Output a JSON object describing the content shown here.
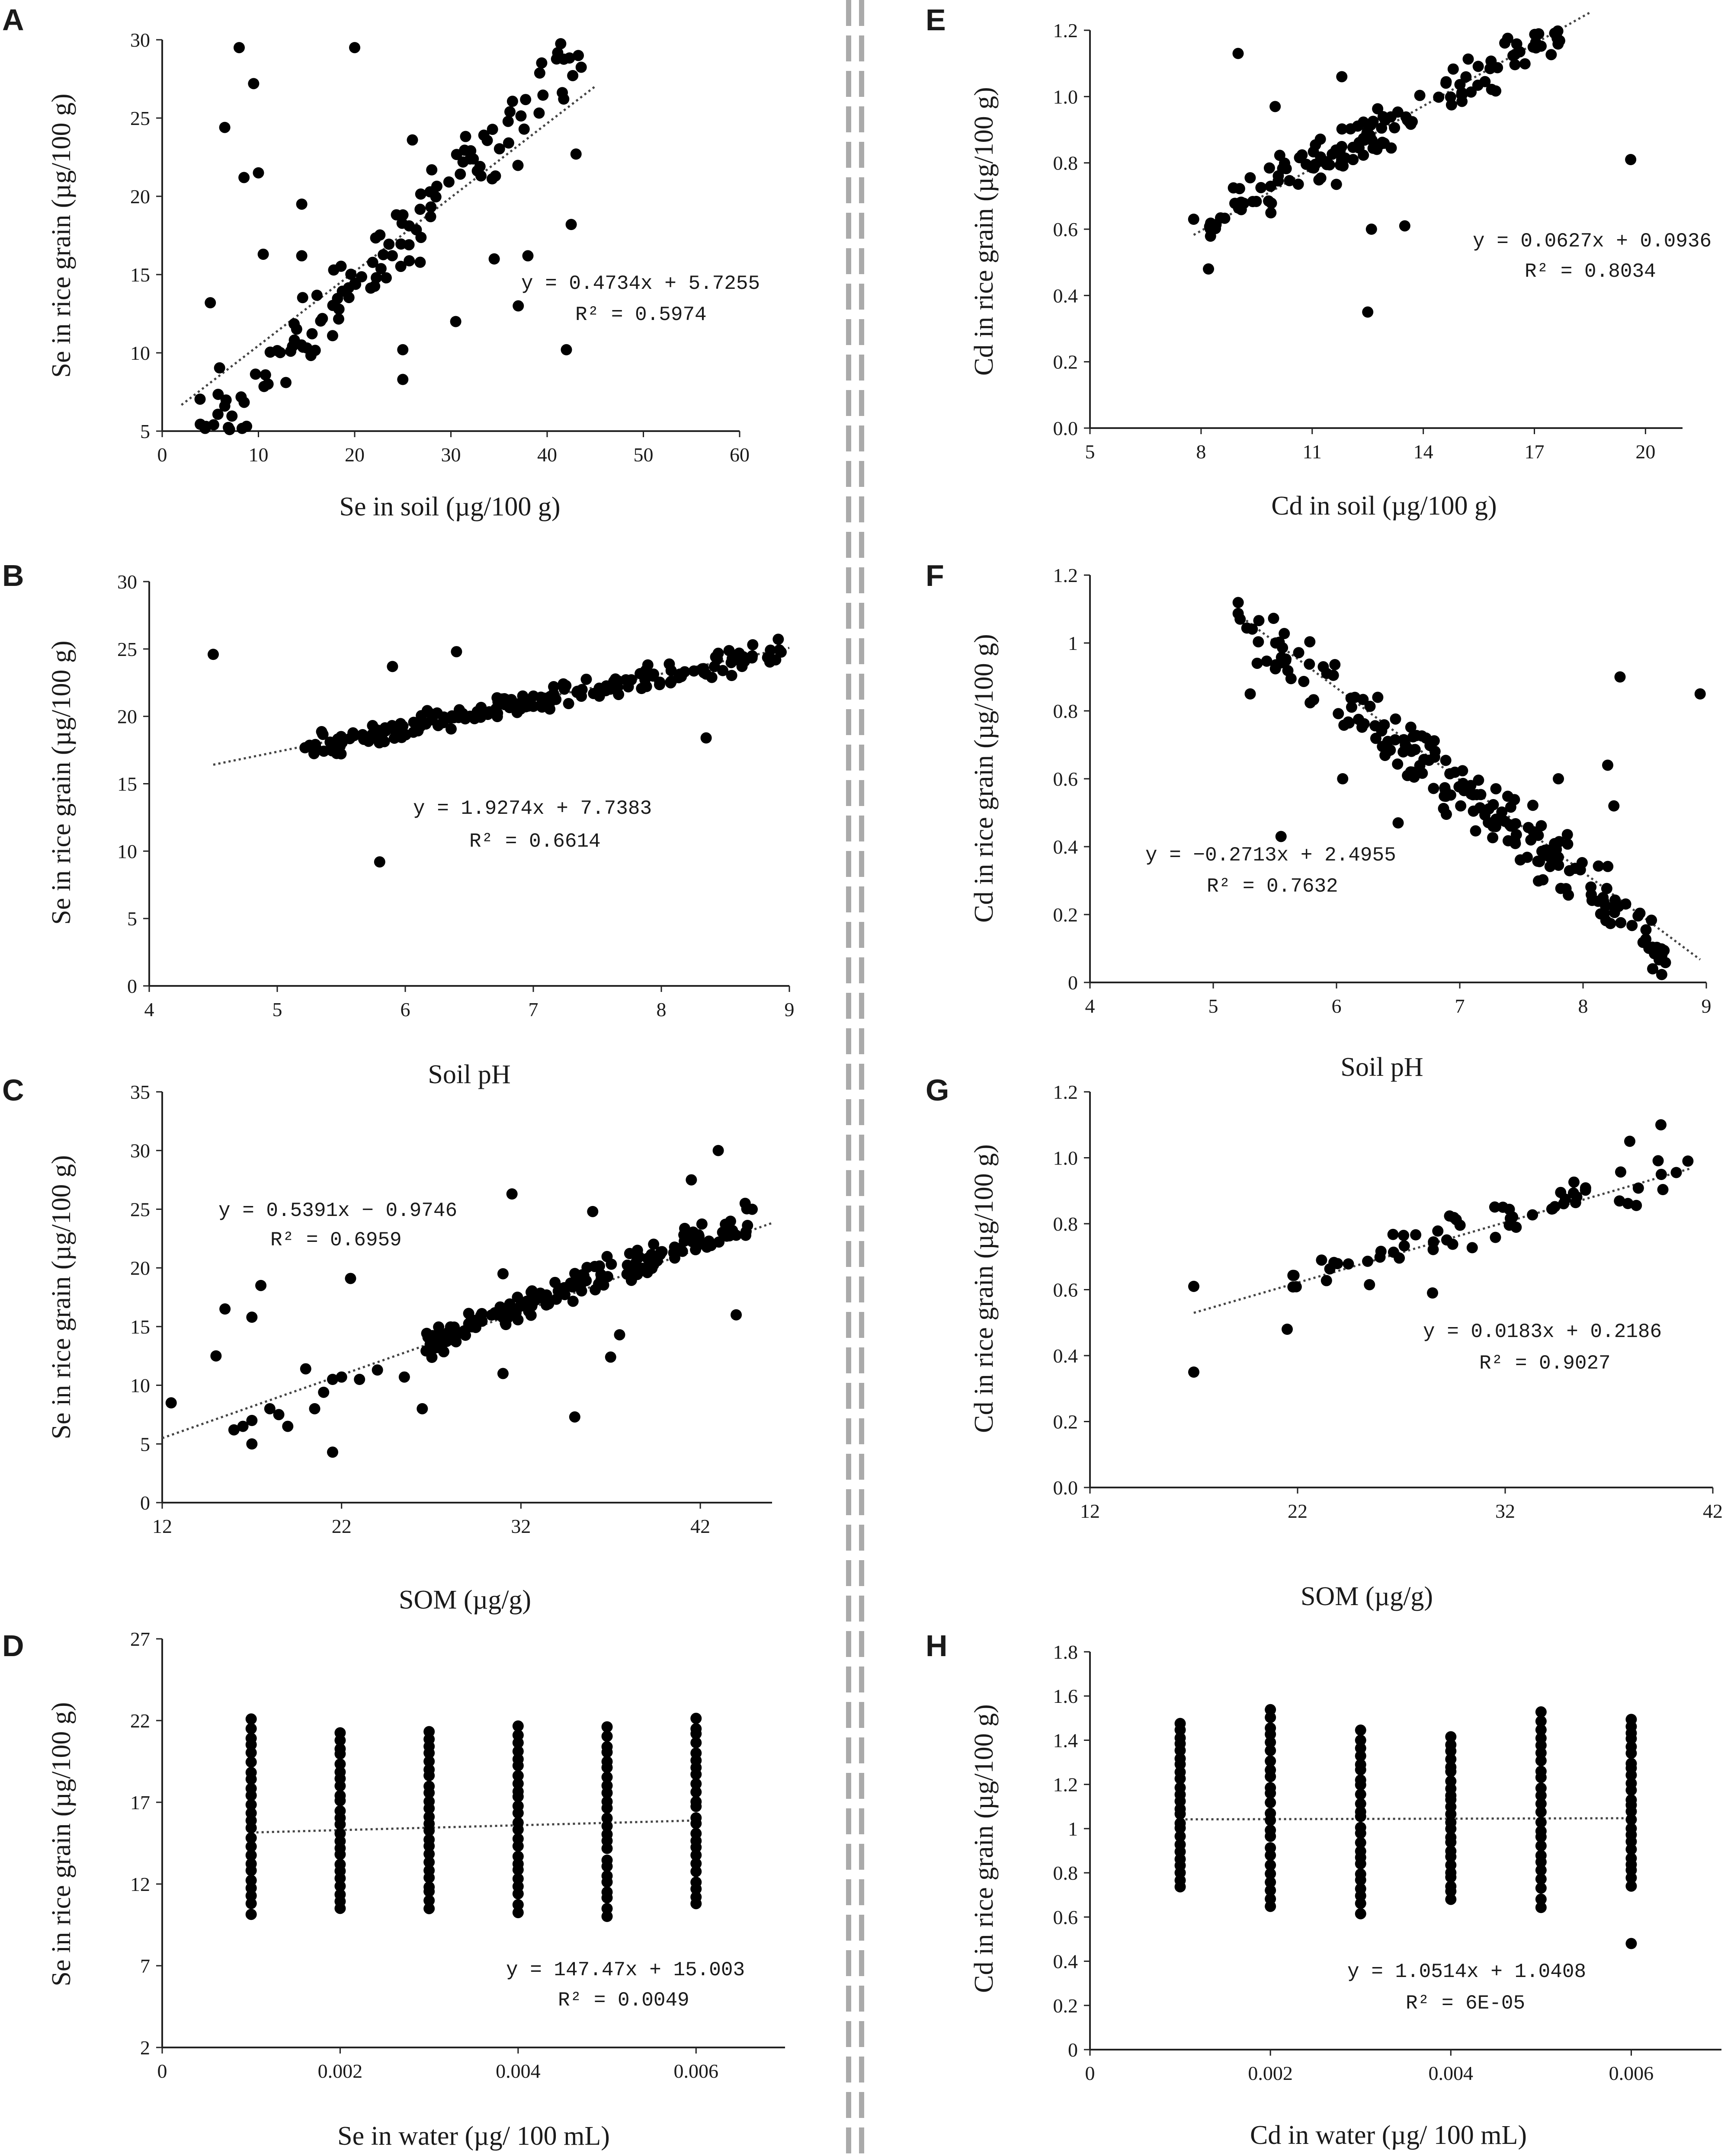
{
  "figure": {
    "divider_color": "#aaaaaa",
    "point_color": "#000000",
    "line_color": "#444444"
  },
  "chart_data": [
    {
      "panel": "A",
      "type": "scatter",
      "xlabel": "Se in soil (µg/100 g)",
      "ylabel": "Se  in rice grain (µg/100 g)",
      "xlim": [
        0,
        60
      ],
      "ylim": [
        5,
        30
      ],
      "xticks": [
        0,
        10,
        20,
        30,
        40,
        50,
        60
      ],
      "xtick_labels": [
        "0",
        "10",
        "20",
        "30",
        "40",
        "50",
        "60"
      ],
      "yticks": [
        5,
        10,
        15,
        20,
        25,
        30
      ],
      "ytick_labels": [
        "5",
        "10",
        "15",
        "20",
        "25",
        "30"
      ],
      "trend": {
        "slope": 0.4734,
        "intercept": 5.7255,
        "x_from": 2,
        "x_to": 45
      },
      "equation": "y = 0.4734x + 5.7255",
      "r2": "R² = 0.5974",
      "gen": {
        "mode": "linear",
        "n": 130,
        "xmin": 3,
        "xmax": 44,
        "slope": 0.62,
        "intercept": 2.0,
        "noise": 1.8,
        "seed": 11
      },
      "outliers": [
        [
          8,
          29.5
        ],
        [
          20,
          29.5
        ],
        [
          6.5,
          24.4
        ],
        [
          9.5,
          27.2
        ],
        [
          8.5,
          21.2
        ],
        [
          10,
          21.5
        ],
        [
          10.5,
          16.3
        ],
        [
          14.5,
          19.5
        ],
        [
          14.5,
          16.2
        ],
        [
          5,
          13.2
        ],
        [
          26,
          23.6
        ],
        [
          37,
          13
        ],
        [
          38,
          16.2
        ],
        [
          42,
          10.2
        ],
        [
          42.5,
          18.2
        ],
        [
          43,
          22.7
        ],
        [
          25,
          8.3
        ],
        [
          25,
          10.2
        ],
        [
          30.5,
          12
        ],
        [
          34.5,
          16
        ],
        [
          7,
          5.1
        ],
        [
          6.5,
          6.6
        ]
      ]
    },
    {
      "panel": "B",
      "type": "scatter",
      "xlabel": "Soil pH",
      "ylabel": "Se  in rice grain (µg/100 g)",
      "xlim": [
        4,
        9
      ],
      "ylim": [
        0,
        30
      ],
      "xticks": [
        4,
        5,
        6,
        7,
        8,
        9
      ],
      "xtick_labels": [
        "4",
        "5",
        "6",
        "7",
        "8",
        "9"
      ],
      "yticks": [
        0,
        5,
        10,
        15,
        20,
        25,
        30
      ],
      "ytick_labels": [
        "0",
        "5",
        "10",
        "15",
        "20",
        "25",
        "30"
      ],
      "trend": {
        "slope": 1.9274,
        "intercept": 7.7383,
        "x_from": 4.5,
        "x_to": 9
      },
      "equation": "y = 1.9274x + 7.7383",
      "r2": "R² = 0.6614",
      "gen": {
        "mode": "linear",
        "n": 190,
        "xmin": 5.2,
        "xmax": 8.95,
        "slope": 1.9,
        "intercept": 7.8,
        "noise": 0.7,
        "seed": 23
      },
      "outliers": [
        [
          4.5,
          24.6
        ],
        [
          5.9,
          23.7
        ],
        [
          6.4,
          24.8
        ],
        [
          5.8,
          9.2
        ],
        [
          8.35,
          18.4
        ]
      ]
    },
    {
      "panel": "C",
      "type": "scatter",
      "xlabel": "SOM  (µg/g)",
      "ylabel": "Se  in rice grain (µg/100 g)",
      "xlim": [
        12,
        46
      ],
      "ylim": [
        0,
        35
      ],
      "xticks": [
        12,
        22,
        32,
        42
      ],
      "xtick_labels": [
        "12",
        "22",
        "32",
        "42"
      ],
      "yticks": [
        0,
        5,
        10,
        15,
        20,
        25,
        30,
        35
      ],
      "ytick_labels": [
        "0",
        "5",
        "10",
        "15",
        "20",
        "25",
        "30",
        "35"
      ],
      "trend": {
        "slope": 0.5391,
        "intercept": -0.9746,
        "x_from": 12,
        "x_to": 46
      },
      "equation": "y = 0.5391x − 0.9746",
      "r2": "R² = 0.6959",
      "gen": {
        "mode": "linear",
        "n": 175,
        "xmin": 26.5,
        "xmax": 45,
        "slope": 0.58,
        "intercept": -2.0,
        "noise": 0.9,
        "seed": 37
      },
      "outliers": [
        [
          12.5,
          8.5
        ],
        [
          15,
          12.5
        ],
        [
          15.5,
          16.5
        ],
        [
          16,
          6.2
        ],
        [
          16.5,
          6.5
        ],
        [
          17,
          7
        ],
        [
          17,
          5
        ],
        [
          17,
          15.8
        ],
        [
          17.5,
          18.5
        ],
        [
          18,
          8
        ],
        [
          18.5,
          7.5
        ],
        [
          19,
          6.5
        ],
        [
          20,
          11.4
        ],
        [
          20.5,
          8
        ],
        [
          21,
          9.4
        ],
        [
          21.5,
          4.3
        ],
        [
          21.5,
          10.5
        ],
        [
          22,
          10.7
        ],
        [
          22.5,
          19.1
        ],
        [
          23,
          10.5
        ],
        [
          24,
          11.3
        ],
        [
          25.5,
          10.7
        ],
        [
          26.5,
          8
        ],
        [
          31,
          11
        ],
        [
          31.5,
          26.3
        ],
        [
          31,
          19.5
        ],
        [
          35,
          7.3
        ],
        [
          36,
          24.8
        ],
        [
          37,
          12.4
        ],
        [
          37.5,
          14.3
        ],
        [
          41.5,
          27.5
        ],
        [
          43,
          30
        ],
        [
          44,
          16
        ],
        [
          44.5,
          25.5
        ]
      ]
    },
    {
      "panel": "D",
      "type": "scatter",
      "xlabel": "Se in water (µg/ 100 mL)",
      "ylabel": "Se  in rice grain (µg/100 g)",
      "xlim": [
        0,
        0.007
      ],
      "ylim": [
        2,
        27
      ],
      "xticks": [
        0,
        0.002,
        0.004,
        0.006
      ],
      "xtick_labels": [
        "0",
        "0.002",
        "0.004",
        "0.006"
      ],
      "yticks": [
        2,
        7,
        12,
        17,
        22,
        27
      ],
      "ytick_labels": [
        "2",
        "7",
        "12",
        "17",
        "22",
        "27"
      ],
      "trend": {
        "slope": 147.47,
        "intercept": 15.003,
        "x_from": 0.001,
        "x_to": 0.006
      },
      "equation": "y = 147.47x + 15.003",
      "r2": "R² = 0.0049",
      "gen": {
        "mode": "columns",
        "xs": [
          0.001,
          0.002,
          0.003,
          0.004,
          0.005,
          0.006
        ],
        "lo": [
          10.2,
          10.4,
          10.5,
          10.3,
          10.1,
          10.7
        ],
        "hi": [
          22,
          21.3,
          21.4,
          21.7,
          21.5,
          22.1
        ],
        "per": 24,
        "seed": 51
      },
      "outliers": []
    },
    {
      "panel": "E",
      "type": "scatter",
      "xlabel": "Cd in soil (µg/100 g)",
      "ylabel": "Cd  in rice grain (µg/100 g)",
      "xlim": [
        5,
        21
      ],
      "ylim": [
        0,
        1.2
      ],
      "xticks": [
        5,
        8,
        11,
        14,
        17,
        20
      ],
      "xtick_labels": [
        "5",
        "8",
        "11",
        "14",
        "17",
        "20"
      ],
      "yticks": [
        0,
        0.2,
        0.4,
        0.6,
        0.8,
        1.0,
        1.2
      ],
      "ytick_labels": [
        "0.0",
        "0.2",
        "0.4",
        "0.6",
        "0.8",
        "1.0",
        "1.2"
      ],
      "trend": {
        "slope": 0.0627,
        "intercept": 0.0936,
        "x_from": 7.8,
        "x_to": 18.5
      },
      "equation": "y = 0.0627x + 0.0936",
      "r2": "R² = 0.8034",
      "gen": {
        "mode": "linear",
        "n": 150,
        "xmin": 8,
        "xmax": 18.5,
        "slope": 0.062,
        "intercept": 0.1,
        "noise": 0.055,
        "seed": 61
      },
      "outliers": [
        [
          7.8,
          0.63
        ],
        [
          8.2,
          0.48
        ],
        [
          9,
          1.13
        ],
        [
          10,
          0.97
        ],
        [
          12.5,
          0.35
        ],
        [
          12.6,
          0.6
        ],
        [
          13.5,
          0.61
        ],
        [
          19.6,
          0.81
        ],
        [
          11.8,
          1.06
        ]
      ]
    },
    {
      "panel": "F",
      "type": "scatter",
      "xlabel": "Soil pH",
      "ylabel": "Cd  in rice grain (µg/100 g)",
      "xlim": [
        4,
        9
      ],
      "ylim": [
        0,
        1.2
      ],
      "xticks": [
        4,
        5,
        6,
        7,
        8,
        9
      ],
      "xtick_labels": [
        "4",
        "5",
        "6",
        "7",
        "8",
        "9"
      ],
      "yticks": [
        0,
        0.2,
        0.4,
        0.6,
        0.8,
        1,
        1.2
      ],
      "ytick_labels": [
        "0",
        "0.2",
        "0.4",
        "0.6",
        "0.8",
        "1",
        "1.2"
      ],
      "trend": {
        "slope": -0.2713,
        "intercept": 2.4955,
        "x_from": 5.2,
        "x_to": 8.95
      },
      "equation": "y = −0.2713x + 2.4955",
      "r2": "R² = 0.7632",
      "gen": {
        "mode": "linear",
        "n": 200,
        "xmin": 5.2,
        "xmax": 8.7,
        "slope": -0.28,
        "intercept": 2.53,
        "noise": 0.07,
        "seed": 71
      },
      "outliers": [
        [
          5.3,
          0.85
        ],
        [
          5.55,
          0.43
        ],
        [
          6.05,
          0.6
        ],
        [
          6.5,
          0.47
        ],
        [
          8.3,
          0.9
        ],
        [
          8.95,
          0.85
        ],
        [
          7.8,
          0.6
        ],
        [
          8.2,
          0.64
        ],
        [
          8.25,
          0.52
        ]
      ]
    },
    {
      "panel": "G",
      "type": "scatter",
      "xlabel": "SOM  (µg/g)",
      "ylabel": "Cd  in rice grain (µg/100 g)",
      "xlim": [
        12,
        42
      ],
      "ylim": [
        0,
        1.2
      ],
      "xticks": [
        12,
        22,
        32,
        42
      ],
      "xtick_labels": [
        "12",
        "22",
        "32",
        "42"
      ],
      "yticks": [
        0,
        0.2,
        0.4,
        0.6,
        0.8,
        1.0,
        1.2
      ],
      "ytick_labels": [
        "0.0",
        "0.2",
        "0.4",
        "0.6",
        "0.8",
        "1.0",
        "1.2"
      ],
      "trend": {
        "slope": 0.0183,
        "intercept": 0.2186,
        "x_from": 17,
        "x_to": 41
      },
      "equation": "y = 0.0183x + 0.2186",
      "r2": "R² = 0.9027",
      "gen": {
        "mode": "linear",
        "n": 60,
        "xmin": 21.5,
        "xmax": 40.5,
        "slope": 0.017,
        "intercept": 0.27,
        "noise": 0.05,
        "seed": 83
      },
      "outliers": [
        [
          17,
          0.61
        ],
        [
          17,
          0.35
        ],
        [
          21.5,
          0.48
        ],
        [
          28.5,
          0.59
        ],
        [
          39.5,
          1.1
        ],
        [
          38,
          1.05
        ],
        [
          40.8,
          0.99
        ]
      ]
    },
    {
      "panel": "H",
      "type": "scatter",
      "xlabel": "Cd in water (µg/ 100 mL)",
      "ylabel": "Cd  in rice grain (µg/100 g)",
      "xlim": [
        0,
        0.007
      ],
      "ylim": [
        0,
        1.8
      ],
      "xticks": [
        0,
        0.002,
        0.004,
        0.006
      ],
      "xtick_labels": [
        "0",
        "0.002",
        "0.004",
        "0.006"
      ],
      "yticks": [
        0,
        0.2,
        0.4,
        0.6,
        0.8,
        1,
        1.2,
        1.4,
        1.6,
        1.8
      ],
      "ytick_labels": [
        "0",
        "0.2",
        "0.4",
        "0.6",
        "0.8",
        "1",
        "1.2",
        "1.4",
        "1.6",
        "1.8"
      ],
      "trend": {
        "slope": 1.0514,
        "intercept": 1.0408,
        "x_from": 0.001,
        "x_to": 0.006
      },
      "equation": "y = 1.0514x + 1.0408",
      "r2": "R² = 6E-05",
      "gen": {
        "mode": "columns",
        "xs": [
          0.001,
          0.002,
          0.003,
          0.004,
          0.005,
          0.006
        ],
        "lo": [
          0.74,
          0.65,
          0.62,
          0.68,
          0.65,
          0.74
        ],
        "hi": [
          1.48,
          1.54,
          1.44,
          1.41,
          1.53,
          1.5
        ],
        "per": 24,
        "seed": 97
      },
      "outliers": [
        [
          0.006,
          0.48
        ]
      ]
    }
  ]
}
